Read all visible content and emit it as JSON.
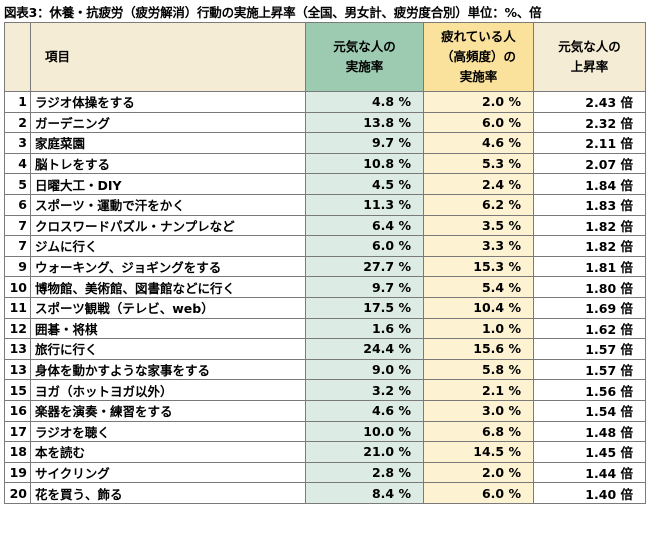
{
  "title": "図表3：休養・抗疲労（疲労解消）行動の実施上昇率（全国、男女計、疲労度合別）単位：%、倍",
  "headers": {
    "item": "項目",
    "col_a_line1": "元気な人の",
    "col_a_line2": "実施率",
    "col_b_line1": "疲れている人",
    "col_b_line2": "（高頻度）の",
    "col_b_line3": "実施率",
    "col_c_line1": "元気な人の",
    "col_c_line2": "上昇率"
  },
  "colors": {
    "header_beige": "#f4ecd4",
    "header_green": "#9ccbb2",
    "header_yellow": "#fbe29c",
    "cell_green": "#dcebe4",
    "cell_yellow": "#fdf3d2"
  },
  "rows": [
    {
      "rank": "1",
      "item": "ラジオ体操をする",
      "a": "4.8 %",
      "b": "2.0 %",
      "c": "2.43 倍"
    },
    {
      "rank": "2",
      "item": "ガーデニング",
      "a": "13.8 %",
      "b": "6.0 %",
      "c": "2.32 倍"
    },
    {
      "rank": "3",
      "item": "家庭菜園",
      "a": "9.7 %",
      "b": "4.6 %",
      "c": "2.11 倍"
    },
    {
      "rank": "4",
      "item": "脳トレをする",
      "a": "10.8 %",
      "b": "5.3 %",
      "c": "2.07 倍"
    },
    {
      "rank": "5",
      "item": "日曜大工・DIY",
      "a": "4.5 %",
      "b": "2.4 %",
      "c": "1.84 倍"
    },
    {
      "rank": "6",
      "item": "スポーツ・運動で汗をかく",
      "a": "11.3 %",
      "b": "6.2 %",
      "c": "1.83 倍"
    },
    {
      "rank": "7",
      "item": "クロスワードパズル・ナンプレなど",
      "a": "6.4 %",
      "b": "3.5 %",
      "c": "1.82 倍"
    },
    {
      "rank": "7",
      "item": "ジムに行く",
      "a": "6.0 %",
      "b": "3.3 %",
      "c": "1.82 倍"
    },
    {
      "rank": "9",
      "item": "ウォーキング、ジョギングをする",
      "a": "27.7 %",
      "b": "15.3 %",
      "c": "1.81 倍"
    },
    {
      "rank": "10",
      "item": "博物館、美術館、図書館などに行く",
      "a": "9.7 %",
      "b": "5.4 %",
      "c": "1.80 倍"
    },
    {
      "rank": "11",
      "item": "スポーツ観戦（テレビ、web）",
      "a": "17.5 %",
      "b": "10.4 %",
      "c": "1.69 倍"
    },
    {
      "rank": "12",
      "item": "囲碁・将棋",
      "a": "1.6 %",
      "b": "1.0 %",
      "c": "1.62 倍"
    },
    {
      "rank": "13",
      "item": "旅行に行く",
      "a": "24.4 %",
      "b": "15.6 %",
      "c": "1.57 倍"
    },
    {
      "rank": "13",
      "item": "身体を動かすような家事をする",
      "a": "9.0 %",
      "b": "5.8 %",
      "c": "1.57 倍"
    },
    {
      "rank": "15",
      "item": "ヨガ（ホットヨガ以外）",
      "a": "3.2 %",
      "b": "2.1 %",
      "c": "1.56 倍"
    },
    {
      "rank": "16",
      "item": "楽器を演奏・練習をする",
      "a": "4.6 %",
      "b": "3.0 %",
      "c": "1.54 倍"
    },
    {
      "rank": "17",
      "item": "ラジオを聴く",
      "a": "10.0 %",
      "b": "6.8 %",
      "c": "1.48 倍"
    },
    {
      "rank": "18",
      "item": "本を読む",
      "a": "21.0 %",
      "b": "14.5 %",
      "c": "1.45 倍"
    },
    {
      "rank": "19",
      "item": "サイクリング",
      "a": "2.8 %",
      "b": "2.0 %",
      "c": "1.44 倍"
    },
    {
      "rank": "20",
      "item": "花を買う、飾る",
      "a": "8.4 %",
      "b": "6.0 %",
      "c": "1.40 倍"
    }
  ]
}
